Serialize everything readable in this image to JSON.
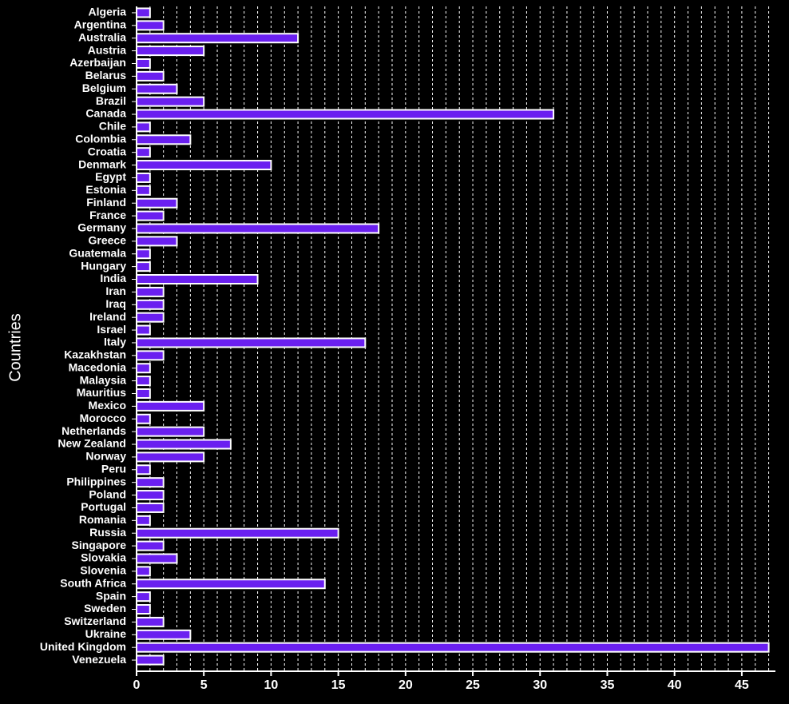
{
  "chart_data": {
    "type": "bar",
    "orientation": "horizontal",
    "y_label": "Countries",
    "categories": [
      "Algeria",
      "Argentina",
      "Australia",
      "Austria",
      "Azerbaijan",
      "Belarus",
      "Belgium",
      "Brazil",
      "Canada",
      "Chile",
      "Colombia",
      "Croatia",
      "Denmark",
      "Egypt",
      "Estonia",
      "Finland",
      "France",
      "Germany",
      "Greece",
      "Guatemala",
      "Hungary",
      "India",
      "Iran",
      "Iraq",
      "Ireland",
      "Israel",
      "Italy",
      "Kazakhstan",
      "Macedonia",
      "Malaysia",
      "Mauritius",
      "Mexico",
      "Morocco",
      "Netherlands",
      "New Zealand",
      "Norway",
      "Peru",
      "Philippines",
      "Poland",
      "Portugal",
      "Romania",
      "Russia",
      "Singapore",
      "Slovakia",
      "Slovenia",
      "South Africa",
      "Spain",
      "Sweden",
      "Switzerland",
      "Ukraine",
      "United Kingdom",
      "Venezuela"
    ],
    "values": [
      1,
      2,
      12,
      5,
      1,
      2,
      3,
      5,
      31,
      1,
      4,
      1,
      10,
      1,
      1,
      3,
      2,
      18,
      3,
      1,
      1,
      9,
      2,
      2,
      2,
      1,
      17,
      2,
      1,
      1,
      1,
      5,
      1,
      5,
      7,
      5,
      1,
      2,
      2,
      2,
      1,
      15,
      2,
      3,
      1,
      14,
      1,
      1,
      2,
      4,
      47,
      2
    ],
    "color": "#6a1ff0",
    "xlim": [
      0,
      47.5
    ],
    "xticks": [
      0,
      5,
      10,
      15,
      20,
      25,
      30,
      35,
      40,
      45
    ],
    "xgrid": [
      1,
      2,
      3,
      4,
      5,
      6,
      7,
      8,
      9,
      10,
      11,
      12,
      13,
      14,
      15,
      16,
      17,
      18,
      19,
      20,
      21,
      22,
      23,
      24,
      25,
      26,
      27,
      28,
      29,
      30,
      31,
      32,
      33,
      34,
      35,
      36,
      37,
      38,
      39,
      40,
      41,
      42,
      43,
      44,
      45,
      46,
      47
    ],
    "grid": true
  }
}
